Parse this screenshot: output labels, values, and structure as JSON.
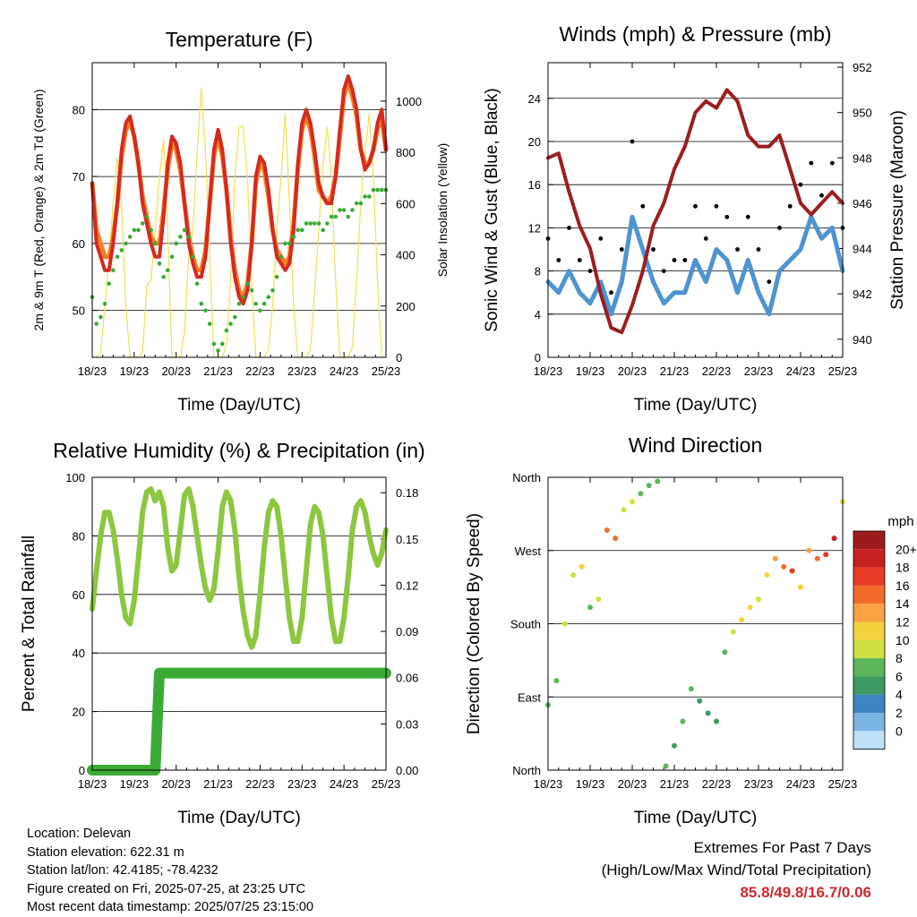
{
  "x_ticks": [
    "18/23",
    "19/23",
    "20/23",
    "21/23",
    "22/23",
    "23/23",
    "24/23",
    "25/23"
  ],
  "chart_data": [
    {
      "type": "line",
      "title": "Temperature (F)",
      "xlabel": "Time (Day/UTC)",
      "ylabel": "2m & 9m T (Red, Orange) & 2m Td (Green)",
      "y2label": "Solar Insolation (Yellow)",
      "ylim": [
        43,
        87
      ],
      "y_ticks": [
        "50",
        "60",
        "70",
        "80"
      ],
      "y2lim": [
        0,
        1150
      ],
      "y2_ticks": [
        "0",
        "200",
        "400",
        "600",
        "800",
        "1000"
      ],
      "grid": true,
      "colors": {
        "t2m": "#d42a20",
        "t9m": "#f47f24",
        "td": "#3aaa35",
        "solar": "#f2de55"
      },
      "x_days": [
        0,
        0.1,
        0.2,
        0.3,
        0.4,
        0.5,
        0.6,
        0.7,
        0.8,
        0.9,
        1,
        1.1,
        1.2,
        1.3,
        1.4,
        1.5,
        1.6,
        1.7,
        1.8,
        1.9,
        2,
        2.1,
        2.2,
        2.3,
        2.4,
        2.5,
        2.6,
        2.7,
        2.8,
        2.9,
        3,
        3.1,
        3.2,
        3.3,
        3.4,
        3.5,
        3.6,
        3.7,
        3.8,
        3.9,
        4,
        4.1,
        4.2,
        4.3,
        4.4,
        4.5,
        4.6,
        4.7,
        4.8,
        4.9,
        5,
        5.1,
        5.2,
        5.3,
        5.4,
        5.5,
        5.6,
        5.7,
        5.8,
        5.9,
        6,
        6.1,
        6.2,
        6.3,
        6.4,
        6.5,
        6.6,
        6.7,
        6.8,
        6.9,
        7
      ],
      "series": [
        {
          "name": "2m T",
          "values": [
            69,
            60,
            58,
            56,
            56,
            60,
            66,
            74,
            78,
            79,
            76,
            72,
            66,
            63,
            60,
            58,
            58,
            64,
            72,
            76,
            75,
            72,
            66,
            60,
            57,
            55,
            55,
            58,
            66,
            74,
            77,
            74,
            68,
            60,
            55,
            52,
            51,
            53,
            60,
            70,
            73,
            72,
            68,
            62,
            58,
            57,
            56,
            57,
            62,
            72,
            78,
            80,
            78,
            74,
            69,
            67,
            66,
            66,
            70,
            77,
            83,
            85,
            83,
            80,
            74,
            71,
            72,
            74,
            78,
            80,
            74
          ]
        },
        {
          "name": "9m T",
          "values": [
            69,
            62,
            60,
            58,
            58,
            61,
            66,
            73,
            77,
            78,
            76,
            72,
            67,
            64,
            61,
            60,
            60,
            65,
            71,
            75,
            74,
            71,
            66,
            61,
            58,
            56,
            56,
            59,
            66,
            73,
            76,
            73,
            68,
            61,
            56,
            53,
            52,
            54,
            60,
            69,
            72,
            71,
            67,
            62,
            59,
            58,
            57,
            58,
            63,
            71,
            77,
            79,
            77,
            73,
            68,
            67,
            66,
            67,
            70,
            76,
            82,
            84,
            82,
            79,
            74,
            72,
            72,
            74,
            77,
            79,
            74
          ]
        },
        {
          "name": "2m Td",
          "values": [
            52,
            48,
            49,
            51,
            54,
            56,
            58,
            59,
            60,
            61,
            62,
            62,
            63,
            64,
            62,
            60,
            57,
            55,
            56,
            58,
            60,
            61,
            62,
            61,
            58,
            54,
            51,
            50,
            48,
            45,
            44,
            45,
            47,
            48,
            49,
            51,
            52,
            54,
            53,
            51,
            50,
            51,
            52,
            53,
            55,
            58,
            60,
            60,
            61,
            62,
            62,
            63,
            63,
            63,
            63,
            62,
            63,
            64,
            64,
            65,
            65,
            64,
            65,
            66,
            66,
            67,
            67,
            68,
            68,
            68,
            68
          ]
        },
        {
          "name": "Solar Insolation",
          "values": [
            0,
            0,
            20,
            200,
            380,
            600,
            780,
            600,
            200,
            0,
            0,
            0,
            20,
            280,
            300,
            500,
            700,
            850,
            500,
            0,
            0,
            0,
            100,
            400,
            500,
            800,
            1050,
            800,
            400,
            0,
            0,
            0,
            50,
            300,
            700,
            900,
            900,
            700,
            300,
            0,
            0,
            0,
            30,
            200,
            500,
            700,
            950,
            600,
            200,
            0,
            0,
            0,
            30,
            250,
            500,
            750,
            900,
            700,
            300,
            0,
            0,
            0,
            40,
            300,
            600,
            800,
            950,
            700,
            300,
            0,
            0
          ]
        }
      ]
    },
    {
      "type": "scatter",
      "title": "Winds (mph) & Pressure (mb)",
      "xlabel": "Time (Day/UTC)",
      "ylabel": "Sonic Wind & Gust (Blue, Black)",
      "y2label": "Station Pressure (Maroon)",
      "ylim": [
        0,
        27.3
      ],
      "y_ticks": [
        "0",
        "4",
        "8",
        "12",
        "16",
        "20",
        "24"
      ],
      "y2lim": [
        939.2,
        952.2
      ],
      "y2_ticks": [
        "940",
        "942",
        "944",
        "946",
        "948",
        "950",
        "952"
      ],
      "grid": true,
      "colors": {
        "wind": "#4d94d1",
        "gust": "#000000",
        "pressure": "#9b1d20"
      },
      "x_days": [
        0,
        0.25,
        0.5,
        0.75,
        1,
        1.25,
        1.5,
        1.75,
        2,
        2.25,
        2.5,
        2.75,
        3,
        3.25,
        3.5,
        3.75,
        4,
        4.25,
        4.5,
        4.75,
        5,
        5.25,
        5.5,
        5.75,
        6,
        6.25,
        6.5,
        6.75,
        7
      ],
      "series": [
        {
          "name": "Sonic Wind",
          "values": [
            7,
            6,
            8,
            6,
            5,
            7,
            4,
            7,
            13,
            10,
            7,
            5,
            6,
            6,
            9,
            7,
            10,
            9,
            6,
            9,
            6,
            4,
            8,
            9,
            10,
            13,
            11,
            12,
            8
          ]
        },
        {
          "name": "Gust",
          "values": [
            11,
            9,
            12,
            9,
            8,
            11,
            6,
            10,
            20,
            14,
            10,
            8,
            9,
            9,
            14,
            11,
            14,
            13,
            10,
            13,
            10,
            7,
            12,
            14,
            16,
            18,
            15,
            18,
            12
          ]
        },
        {
          "name": "Station Pressure",
          "values": [
            948,
            948.2,
            946.5,
            945,
            944,
            942,
            940.5,
            940.3,
            941.5,
            943,
            945,
            946,
            947.5,
            948.5,
            950,
            950.5,
            950.2,
            951,
            950.5,
            949,
            948.5,
            948.5,
            949,
            947.5,
            946,
            945.5,
            946,
            946.5,
            946
          ]
        }
      ]
    },
    {
      "type": "line",
      "title": "Relative Humidity (%) & Precipitation (in)",
      "xlabel": "Time (Day/UTC)",
      "ylabel": "Percent & Total Rainfall",
      "ylim": [
        0,
        100
      ],
      "y_ticks": [
        "0",
        "20",
        "40",
        "60",
        "80",
        "100"
      ],
      "y2lim": [
        0,
        0.19
      ],
      "y2_ticks": [
        "0.00",
        "0.03",
        "0.06",
        "0.09",
        "0.12",
        "0.15",
        "0.18"
      ],
      "grid": true,
      "colors": {
        "rh": "#8dc63f",
        "precip": "#3aaa35"
      },
      "x_days": [
        0,
        0.1,
        0.2,
        0.3,
        0.4,
        0.5,
        0.6,
        0.7,
        0.8,
        0.9,
        1,
        1.1,
        1.2,
        1.3,
        1.4,
        1.5,
        1.6,
        1.7,
        1.8,
        1.9,
        2,
        2.1,
        2.2,
        2.3,
        2.4,
        2.5,
        2.6,
        2.7,
        2.8,
        2.9,
        3,
        3.1,
        3.2,
        3.3,
        3.4,
        3.5,
        3.6,
        3.7,
        3.8,
        3.9,
        4,
        4.1,
        4.2,
        4.3,
        4.4,
        4.5,
        4.6,
        4.7,
        4.8,
        4.9,
        5,
        5.1,
        5.2,
        5.3,
        5.4,
        5.5,
        5.6,
        5.7,
        5.8,
        5.9,
        6,
        6.1,
        6.2,
        6.3,
        6.4,
        6.5,
        6.6,
        6.7,
        6.8,
        6.9,
        7
      ],
      "series": [
        {
          "name": "Relative Humidity",
          "values": [
            55,
            68,
            80,
            88,
            88,
            82,
            72,
            60,
            52,
            50,
            58,
            72,
            88,
            95,
            96,
            92,
            95,
            90,
            76,
            68,
            70,
            82,
            94,
            96,
            90,
            80,
            70,
            62,
            58,
            62,
            75,
            90,
            95,
            92,
            82,
            66,
            54,
            46,
            42,
            46,
            60,
            76,
            88,
            92,
            90,
            80,
            66,
            52,
            44,
            44,
            52,
            68,
            84,
            90,
            88,
            80,
            66,
            52,
            44,
            44,
            52,
            66,
            82,
            90,
            92,
            88,
            80,
            74,
            70,
            74,
            82
          ]
        },
        {
          "name": "Total Precipitation",
          "values": [
            0,
            0,
            0,
            0,
            0,
            0,
            0,
            0,
            0,
            0,
            0,
            0,
            0,
            0,
            0,
            0,
            0.063,
            0.063,
            0.063,
            0.063,
            0.063,
            0.063,
            0.063,
            0.063,
            0.063,
            0.063,
            0.063,
            0.063,
            0.063,
            0.063,
            0.063,
            0.063,
            0.063,
            0.063,
            0.063,
            0.063,
            0.063,
            0.063,
            0.063,
            0.063,
            0.063,
            0.063,
            0.063,
            0.063,
            0.063,
            0.063,
            0.063,
            0.063,
            0.063,
            0.063,
            0.063,
            0.063,
            0.063,
            0.063,
            0.063,
            0.063,
            0.063,
            0.063,
            0.063,
            0.063,
            0.063,
            0.063,
            0.063,
            0.063,
            0.063,
            0.063,
            0.063,
            0.063,
            0.063,
            0.063,
            0.063
          ]
        }
      ]
    },
    {
      "type": "scatter",
      "title": "Wind Direction",
      "xlabel": "Time (Day/UTC)",
      "ylabel": "Direction (Colored By Speed)",
      "ylim": [
        0,
        360
      ],
      "y_ticks": [
        "North",
        "East",
        "South",
        "West",
        "North"
      ],
      "grid": true,
      "legend": {
        "title": "mph",
        "labels": [
          "20+",
          "18",
          "16",
          "14",
          "12",
          "10",
          "8",
          "6",
          "4",
          "2",
          "0"
        ],
        "colors": [
          "#9e1b1b",
          "#c8201f",
          "#e63a23",
          "#f26b2a",
          "#f8a243",
          "#f4d23d",
          "#cde040",
          "#5db55a",
          "#3c9a62",
          "#3e83c2",
          "#7bb4e3",
          "#bfe0f6"
        ],
        "placement": "right"
      },
      "x_days": [
        0,
        0.2,
        0.4,
        0.6,
        0.8,
        1,
        1.2,
        1.4,
        1.6,
        1.8,
        2,
        2.2,
        2.4,
        2.6,
        2.8,
        3,
        3.2,
        3.4,
        3.6,
        3.8,
        4,
        4.2,
        4.4,
        4.6,
        4.8,
        5,
        5.2,
        5.4,
        5.6,
        5.8,
        6,
        6.2,
        6.4,
        6.6,
        6.8,
        7
      ],
      "direction_deg": [
        80,
        110,
        180,
        240,
        250,
        200,
        210,
        295,
        285,
        320,
        330,
        340,
        350,
        355,
        5,
        30,
        60,
        100,
        85,
        70,
        60,
        145,
        170,
        185,
        200,
        210,
        240,
        260,
        250,
        245,
        225,
        270,
        260,
        265,
        285,
        330
      ],
      "speed_mph": [
        6,
        6,
        7,
        7,
        10,
        5,
        8,
        13,
        14,
        8,
        7,
        6,
        5,
        6,
        6,
        4,
        5,
        5,
        4,
        4,
        4,
        6,
        8,
        9,
        10,
        8,
        9,
        12,
        14,
        16,
        9,
        12,
        14,
        15,
        17,
        9
      ]
    }
  ],
  "info": {
    "location": "Location: Delevan",
    "elevation": "Station elevation: 622.31 m",
    "latlon": "Station lat/lon: 42.4185; -78.4232",
    "created": "Figure created on Fri, 2025-07-25, at 23:25 UTC",
    "recent": "Most recent data timestamp: 2025/07/25 23:15:00"
  },
  "extremes": {
    "line1": "Extremes For Past 7 Days",
    "line2": "(High/Low/Max Wind/Total Precipitation)",
    "values": "85.8/49.8/16.7/0.06"
  }
}
